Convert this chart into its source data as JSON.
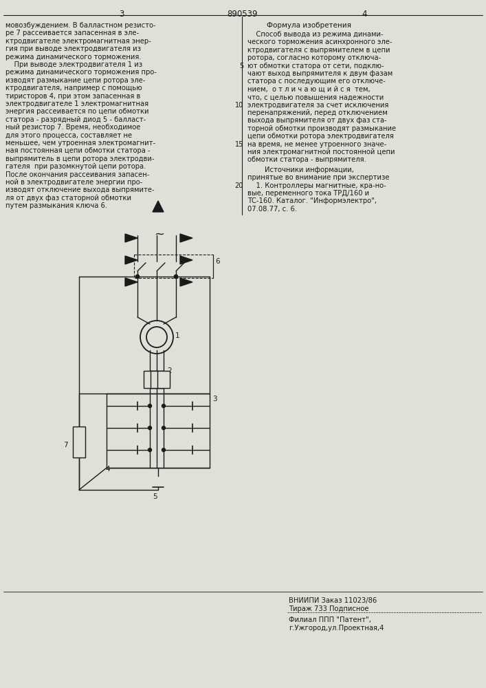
{
  "bg_color": "#e0e0d8",
  "text_color": "#1a1a1a",
  "line_color": "#1a1a1a",
  "page_number_left": "3",
  "patent_number": "890539",
  "page_number_right": "4",
  "left_col_text": [
    "мовозбуждением. В балластном резисто-",
    "ре 7 рассеивается запасенная в эле-",
    "ктродвигателе электромагнитная энер-",
    "гия при выводе электродвигателя из",
    "режима динамического торможения.",
    "    При выводе электродвигателя 1 из",
    "режима динамического торможения про-",
    "изводят размыкание цепи ротора эле-",
    "ктродвигателя, например с помощью",
    "тиристоров 4, при этом запасенная в",
    "электродвигателе 1 электромагнитная",
    "энергия рассеивается по цепи обмотки",
    "статора - разрядный диод 5 - балласт-",
    "ный резистор 7. Время, необходимое",
    "для этого процесса, составляет не",
    "меньшее, чем утроенная электромагнит-",
    "ная постоянная цепи обмотки статора -",
    "выпрямитель в цепи ротора электродви-",
    "гателя  при разомкнутой цепи ротора.",
    "После окончания рассеивания запасен-",
    "ной в электродвигателе энергии про-",
    "изводят отключение выхода выпрямите-",
    "ля от двух фаз статорной обмотки",
    "путем размыкания ключа 6."
  ],
  "right_col_header": "Формула изобретения",
  "right_col_text": [
    "    Способ вывода из режима динами-",
    "ческого торможения асинхронного эле-",
    "ктродвигателя с выпрямителем в цепи",
    "ротора, согласно которому отключа-",
    "ют обмотки статора от сети, подклю-",
    "чают выход выпрямителя к двум фазам",
    "статора с последующим его отключе-",
    "нием,  о т л и ч а ю щ и й с я  тем,",
    "что, с целью повышения надежности",
    "электродвигателя за счет исключения",
    "перенапряжений, перед отключением",
    "выхода выпрямителя от двух фаз ста-",
    "торной обмотки производят размыкание",
    "цепи обмотки ротора электродвигателя",
    "на время, не менее утроенного значе-",
    "ния электромагнитной постоянной цепи",
    "обмотки статора - выпрямителя."
  ],
  "right_col_sources": [
    "        Источники информации,",
    "принятые во внимание при экспертизе",
    "    1. Контроллеры магнитные, кра-но-",
    "вые, переменного тока ТРД/160 и",
    "ТС-160. Каталог. \"Информэлектро\",",
    "07.08.77, с. 6."
  ],
  "footer_line1": "ВНИИПИ Заказ 11023/86",
  "footer_line2": "Тираж 733 Подписное",
  "footer_line3": "Филиал ППП \"Патент\",",
  "footer_line4": "г.Ужгород,ул.Проектная,4"
}
